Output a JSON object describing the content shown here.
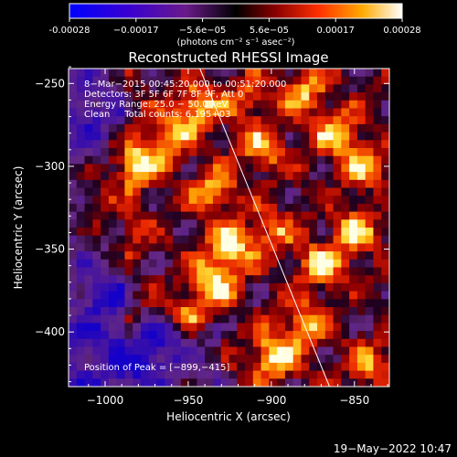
{
  "chart_data": {
    "type": "heatmap",
    "title": "Reconstructed RHESSI Image",
    "xlabel": "Heliocentric X (arcsec)",
    "ylabel": "Heliocentric Y (arcsec)",
    "xlim": [
      -1022,
      -829
    ],
    "ylim": [
      -433,
      -241
    ],
    "x_ticks": [
      -1000,
      -950,
      -900,
      -850
    ],
    "y_ticks": [
      -250,
      -300,
      -350,
      -400
    ],
    "x_tick_labels": [
      "−1000",
      "−950",
      "−900",
      "−850"
    ],
    "y_tick_labels": [
      "−250",
      "−300",
      "−350",
      "−400"
    ],
    "colorbar": {
      "range": [
        -0.00028,
        0.00028
      ],
      "tick_labels": [
        "-0.00028",
        "−0.00017",
        "−5.6e−05",
        "5.6e−05",
        "0.00017",
        "0.00028"
      ],
      "units": "(photons cm⁻² s⁻¹ asec⁻²)"
    },
    "annotations": [
      "8−Mar−2015 00:45:20.000 to 00:51:20.000",
      "Detectors: 3F 5F 6F 7F 8F 9F, Att 0",
      "Energy Range: 25.0 − 50.0 keV",
      "Clean     Total counts: 6.195+03"
    ],
    "peak_label": "Position of Peak = [−899,−415]",
    "limb_line": {
      "x": [
        -943,
        -865
      ],
      "y": [
        -241,
        -433
      ]
    },
    "hotspots": [
      {
        "x": -985,
        "y": -300,
        "v": 1.0
      },
      {
        "x": -965,
        "y": -285,
        "v": 0.8
      },
      {
        "x": -945,
        "y": -265,
        "v": 0.85
      },
      {
        "x": -935,
        "y": -315,
        "v": 0.75
      },
      {
        "x": -905,
        "y": -290,
        "v": 0.7
      },
      {
        "x": -880,
        "y": -255,
        "v": 0.75
      },
      {
        "x": -860,
        "y": -280,
        "v": 0.8
      },
      {
        "x": -845,
        "y": -300,
        "v": 0.7
      },
      {
        "x": -900,
        "y": -340,
        "v": 0.6
      },
      {
        "x": -925,
        "y": -350,
        "v": 0.9
      },
      {
        "x": -935,
        "y": -370,
        "v": 0.85
      },
      {
        "x": -870,
        "y": -360,
        "v": 0.8
      },
      {
        "x": -850,
        "y": -340,
        "v": 0.75
      },
      {
        "x": -880,
        "y": -395,
        "v": 0.7
      },
      {
        "x": -899,
        "y": -415,
        "v": 1.0
      },
      {
        "x": -950,
        "y": -390,
        "v": 0.6
      },
      {
        "x": -990,
        "y": -340,
        "v": 0.5
      },
      {
        "x": -1005,
        "y": -320,
        "v": 0.55
      },
      {
        "x": -1000,
        "y": -380,
        "v": -0.6
      },
      {
        "x": -980,
        "y": -420,
        "v": -0.7
      },
      {
        "x": -1010,
        "y": -270,
        "v": -0.4
      },
      {
        "x": -965,
        "y": -405,
        "v": -0.5
      },
      {
        "x": -840,
        "y": -420,
        "v": 0.6
      },
      {
        "x": -915,
        "y": -260,
        "v": 0.5
      }
    ]
  },
  "footer": {
    "timestamp": "19−May−2022 10:47"
  }
}
